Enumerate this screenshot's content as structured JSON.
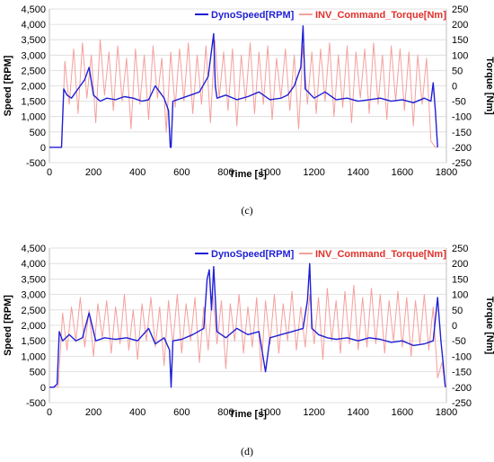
{
  "colors": {
    "speed": "#1f1fd6",
    "torque": "#f4a09c",
    "grid": "#d9d9d9",
    "legend_torque_text": "#e0302a"
  },
  "chart_data": [
    {
      "type": "line",
      "panel_label": "(c)",
      "xlabel": "Time [s]",
      "ylabel_left": "Speed [RPM]",
      "ylabel_right": "Torque [Nm]",
      "xlim": [
        0,
        1800
      ],
      "ylim_left": [
        -500,
        4500
      ],
      "ylim_right": [
        -250,
        250
      ],
      "x_ticks": [
        "0",
        "200",
        "400",
        "600",
        "800",
        "1000",
        "1200",
        "1400",
        "1600",
        "1800"
      ],
      "y_left_ticks": [
        "-500",
        "0",
        "500",
        "1,000",
        "1,500",
        "2,000",
        "2,500",
        "3,000",
        "3,500",
        "4,000",
        "4,500"
      ],
      "y_right_ticks": [
        "-250",
        "-200",
        "-150",
        "-100",
        "-50",
        "0",
        "50",
        "100",
        "150",
        "200",
        "250"
      ],
      "grid": "horizontal",
      "legend_position": "top",
      "series": [
        {
          "name": "DynoSpeed[RPM]",
          "axis": "left",
          "x": [
            0,
            55,
            65,
            80,
            100,
            130,
            160,
            180,
            200,
            230,
            260,
            300,
            340,
            380,
            420,
            450,
            480,
            520,
            540,
            548,
            552,
            560,
            600,
            640,
            680,
            720,
            745,
            752,
            760,
            800,
            850,
            900,
            950,
            1000,
            1050,
            1080,
            1110,
            1140,
            1150,
            1160,
            1200,
            1250,
            1300,
            1350,
            1400,
            1450,
            1500,
            1550,
            1600,
            1650,
            1700,
            1730,
            1740,
            1750,
            1760
          ],
          "y": [
            0,
            0,
            1900,
            1700,
            1600,
            1900,
            2200,
            2600,
            1700,
            1500,
            1600,
            1550,
            1650,
            1600,
            1500,
            1550,
            2000,
            1600,
            1200,
            0,
            0,
            1500,
            1600,
            1700,
            1800,
            2300,
            3700,
            2000,
            1600,
            1700,
            1550,
            1650,
            1800,
            1550,
            1600,
            1700,
            2000,
            2600,
            3950,
            1900,
            1600,
            1800,
            1550,
            1600,
            1500,
            1550,
            1600,
            1500,
            1550,
            1450,
            1600,
            1500,
            2100,
            1200,
            0
          ]
        },
        {
          "name": "INV_Command_Torque[Nm]",
          "axis": "right",
          "x": [
            0,
            55,
            70,
            90,
            110,
            130,
            150,
            170,
            190,
            210,
            230,
            250,
            270,
            290,
            310,
            330,
            350,
            370,
            390,
            410,
            430,
            450,
            470,
            490,
            510,
            530,
            550,
            570,
            590,
            610,
            630,
            650,
            670,
            690,
            710,
            730,
            750,
            770,
            790,
            810,
            830,
            850,
            870,
            890,
            910,
            930,
            950,
            970,
            990,
            1010,
            1030,
            1050,
            1070,
            1090,
            1110,
            1130,
            1150,
            1170,
            1190,
            1210,
            1230,
            1250,
            1270,
            1290,
            1310,
            1330,
            1350,
            1370,
            1390,
            1410,
            1430,
            1450,
            1470,
            1490,
            1510,
            1530,
            1550,
            1570,
            1590,
            1610,
            1630,
            1650,
            1670,
            1690,
            1710,
            1730,
            1750,
            1760
          ],
          "y": [
            -200,
            -200,
            80,
            -60,
            120,
            -90,
            140,
            -40,
            100,
            -120,
            150,
            -30,
            110,
            -80,
            130,
            -50,
            90,
            -140,
            120,
            -60,
            100,
            -110,
            130,
            -40,
            90,
            -150,
            110,
            -70,
            120,
            -50,
            140,
            -90,
            100,
            -60,
            130,
            -120,
            150,
            -40,
            110,
            -80,
            120,
            -130,
            100,
            -50,
            140,
            -90,
            110,
            -60,
            130,
            -110,
            90,
            -40,
            120,
            -80,
            100,
            -140,
            130,
            -60,
            110,
            -90,
            120,
            -50,
            140,
            -100,
            100,
            -70,
            130,
            -120,
            110,
            -40,
            120,
            -90,
            140,
            -60,
            100,
            -110,
            130,
            -50,
            120,
            -80,
            110,
            -130,
            100,
            -60,
            90,
            -180,
            -200,
            -200
          ]
        }
      ]
    },
    {
      "type": "line",
      "panel_label": "(d)",
      "xlabel": "Time [s]",
      "ylabel_left": "Speed [RPM]",
      "ylabel_right": "Torque [Nm]",
      "xlim": [
        0,
        1800
      ],
      "ylim_left": [
        -500,
        4500
      ],
      "ylim_right": [
        -250,
        250
      ],
      "x_ticks": [
        "0",
        "200",
        "400",
        "600",
        "800",
        "1000",
        "1200",
        "1400",
        "1600",
        "1800"
      ],
      "y_left_ticks": [
        "-500",
        "0",
        "500",
        "1,000",
        "1,500",
        "2,000",
        "2,500",
        "3,000",
        "3,500",
        "4,000",
        "4,500"
      ],
      "y_right_ticks": [
        "-250",
        "-200",
        "-150",
        "-100",
        "-50",
        "0",
        "50",
        "100",
        "150",
        "200",
        "250"
      ],
      "grid": "horizontal",
      "legend_position": "top",
      "series": [
        {
          "name": "DynoSpeed[RPM]",
          "axis": "left",
          "x": [
            0,
            20,
            35,
            45,
            60,
            90,
            120,
            150,
            180,
            210,
            250,
            300,
            350,
            400,
            450,
            480,
            520,
            545,
            552,
            560,
            600,
            650,
            700,
            715,
            725,
            735,
            745,
            760,
            800,
            850,
            900,
            950,
            980,
            1000,
            1050,
            1100,
            1150,
            1170,
            1180,
            1190,
            1220,
            1260,
            1300,
            1350,
            1400,
            1450,
            1500,
            1550,
            1600,
            1650,
            1700,
            1740,
            1760,
            1775,
            1785,
            1795
          ],
          "y": [
            0,
            0,
            100,
            1800,
            1500,
            1700,
            1500,
            1600,
            2400,
            1500,
            1600,
            1550,
            1600,
            1500,
            1900,
            1400,
            1600,
            1200,
            0,
            1500,
            1550,
            1700,
            1900,
            3500,
            3800,
            2500,
            3900,
            1800,
            1600,
            1900,
            1700,
            1800,
            500,
            1600,
            1700,
            1800,
            1900,
            2800,
            4000,
            1900,
            1700,
            1600,
            1550,
            1600,
            1500,
            1600,
            1550,
            1450,
            1500,
            1350,
            1400,
            1500,
            2900,
            1500,
            800,
            0
          ]
        },
        {
          "name": "INV_Command_Torque[Nm]",
          "axis": "right",
          "x": [
            0,
            40,
            60,
            80,
            100,
            120,
            140,
            160,
            180,
            200,
            220,
            240,
            260,
            280,
            300,
            320,
            340,
            360,
            380,
            400,
            420,
            440,
            460,
            480,
            500,
            520,
            540,
            560,
            580,
            600,
            620,
            640,
            660,
            680,
            700,
            720,
            740,
            760,
            780,
            800,
            820,
            840,
            860,
            880,
            900,
            920,
            940,
            960,
            980,
            1000,
            1020,
            1040,
            1060,
            1080,
            1100,
            1120,
            1140,
            1160,
            1180,
            1200,
            1220,
            1240,
            1260,
            1280,
            1300,
            1320,
            1340,
            1360,
            1380,
            1400,
            1420,
            1440,
            1460,
            1480,
            1500,
            1520,
            1540,
            1560,
            1580,
            1600,
            1620,
            1640,
            1660,
            1680,
            1700,
            1720,
            1740,
            1760,
            1780,
            1795
          ],
          "y": [
            -200,
            -200,
            40,
            -80,
            60,
            -50,
            90,
            -70,
            50,
            -100,
            70,
            -40,
            80,
            -90,
            60,
            -60,
            100,
            -80,
            50,
            -110,
            70,
            -50,
            90,
            -70,
            60,
            -130,
            80,
            -60,
            100,
            -90,
            70,
            -50,
            90,
            -120,
            60,
            -80,
            110,
            -60,
            80,
            -140,
            70,
            -50,
            100,
            -90,
            60,
            -70,
            90,
            -150,
            80,
            -60,
            100,
            -90,
            70,
            -50,
            110,
            -80,
            60,
            -70,
            100,
            -60,
            90,
            -110,
            120,
            -50,
            80,
            -90,
            110,
            -60,
            130,
            -80,
            90,
            -70,
            120,
            -60,
            100,
            -90,
            80,
            -50,
            110,
            -70,
            90,
            -100,
            80,
            -60,
            100,
            -80,
            60,
            -170,
            -120,
            -200
          ]
        }
      ]
    }
  ]
}
